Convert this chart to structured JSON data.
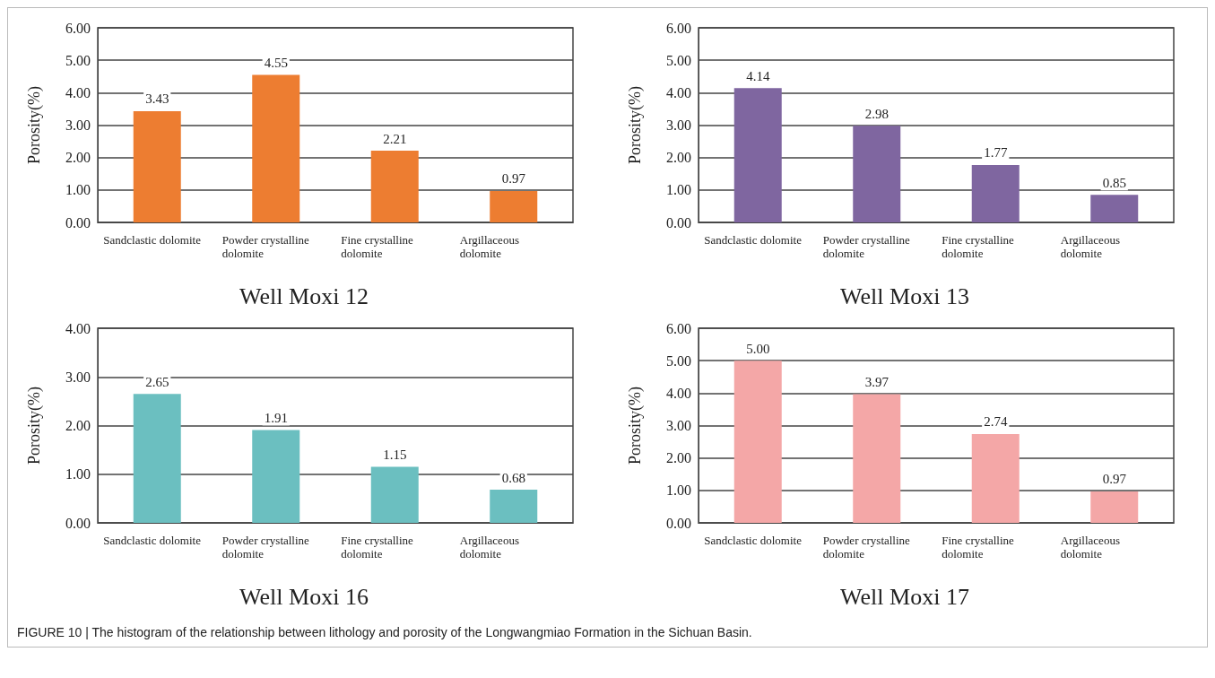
{
  "chart_data": [
    {
      "type": "bar",
      "title": "Well Moxi 12",
      "ylabel": "Porosity(%)",
      "categories": [
        "Sandclastic dolomite",
        "Powder crystalline dolomite",
        "Fine crystalline dolomite",
        "Argillaceous dolomite"
      ],
      "values": [
        3.43,
        4.55,
        2.21,
        0.97
      ],
      "value_labels": [
        "3.43",
        "4.55",
        "2.21",
        "0.97"
      ],
      "color": "#ed7d31",
      "ylim": [
        0,
        6
      ],
      "yticks": [
        {
          "value": 0,
          "label": "0.00"
        },
        {
          "value": 1,
          "label": "1.00"
        },
        {
          "value": 2,
          "label": "2.00"
        },
        {
          "value": 3,
          "label": "3.00"
        },
        {
          "value": 4,
          "label": "4.00"
        },
        {
          "value": 5,
          "label": "5.00"
        },
        {
          "value": 6,
          "label": "6.00"
        }
      ],
      "grid": "y"
    },
    {
      "type": "bar",
      "title": "Well Moxi 13",
      "ylabel": "Porosity(%)",
      "categories": [
        "Sandclastic dolomite",
        "Powder crystalline dolomite",
        "Fine crystalline dolomite",
        "Argillaceous dolomite"
      ],
      "values": [
        4.14,
        2.98,
        1.77,
        0.85
      ],
      "value_labels": [
        "4.14",
        "2.98",
        "1.77",
        "0.85"
      ],
      "color": "#7f66a0",
      "ylim": [
        0,
        6
      ],
      "yticks": [
        {
          "value": 0,
          "label": "0.00"
        },
        {
          "value": 1,
          "label": "1.00"
        },
        {
          "value": 2,
          "label": "2.00"
        },
        {
          "value": 3,
          "label": "3.00"
        },
        {
          "value": 4,
          "label": "4.00"
        },
        {
          "value": 5,
          "label": "5.00"
        },
        {
          "value": 6,
          "label": "6.00"
        }
      ],
      "grid": "y"
    },
    {
      "type": "bar",
      "title": "Well Moxi 16",
      "ylabel": "Porosity(%)",
      "categories": [
        "Sandclastic dolomite",
        "Powder crystalline dolomite",
        "Fine crystalline dolomite",
        "Argillaceous dolomite"
      ],
      "values": [
        2.65,
        1.91,
        1.15,
        0.68
      ],
      "value_labels": [
        "2.65",
        "1.91",
        "1.15",
        "0.68"
      ],
      "color": "#6bbfc0",
      "ylim": [
        0,
        4
      ],
      "yticks": [
        {
          "value": 0,
          "label": "0.00"
        },
        {
          "value": 1,
          "label": "1.00"
        },
        {
          "value": 2,
          "label": "2.00"
        },
        {
          "value": 3,
          "label": "3.00"
        },
        {
          "value": 4,
          "label": "4.00"
        }
      ],
      "grid": "y"
    },
    {
      "type": "bar",
      "title": "Well Moxi 17",
      "ylabel": "Porosity(%)",
      "categories": [
        "Sandclastic dolomite",
        "Powder crystalline dolomite",
        "Fine crystalline dolomite",
        "Argillaceous dolomite"
      ],
      "values": [
        5.0,
        3.97,
        2.74,
        0.97
      ],
      "value_labels": [
        "5.00",
        "3.97",
        "2.74",
        "0.97"
      ],
      "color": "#f4a7a7",
      "ylim": [
        0,
        6
      ],
      "yticks": [
        {
          "value": 0,
          "label": "0.00"
        },
        {
          "value": 1,
          "label": "1.00"
        },
        {
          "value": 2,
          "label": "2.00"
        },
        {
          "value": 3,
          "label": "3.00"
        },
        {
          "value": 4,
          "label": "4.00"
        },
        {
          "value": 5,
          "label": "5.00"
        },
        {
          "value": 6,
          "label": "6.00"
        }
      ],
      "grid": "y",
      "annotations": [
        "FIGURE 10 | The histogram of the relationship between lithology and porosity of the Longwangmiao Formation in the Sichuan Basin."
      ]
    }
  ]
}
